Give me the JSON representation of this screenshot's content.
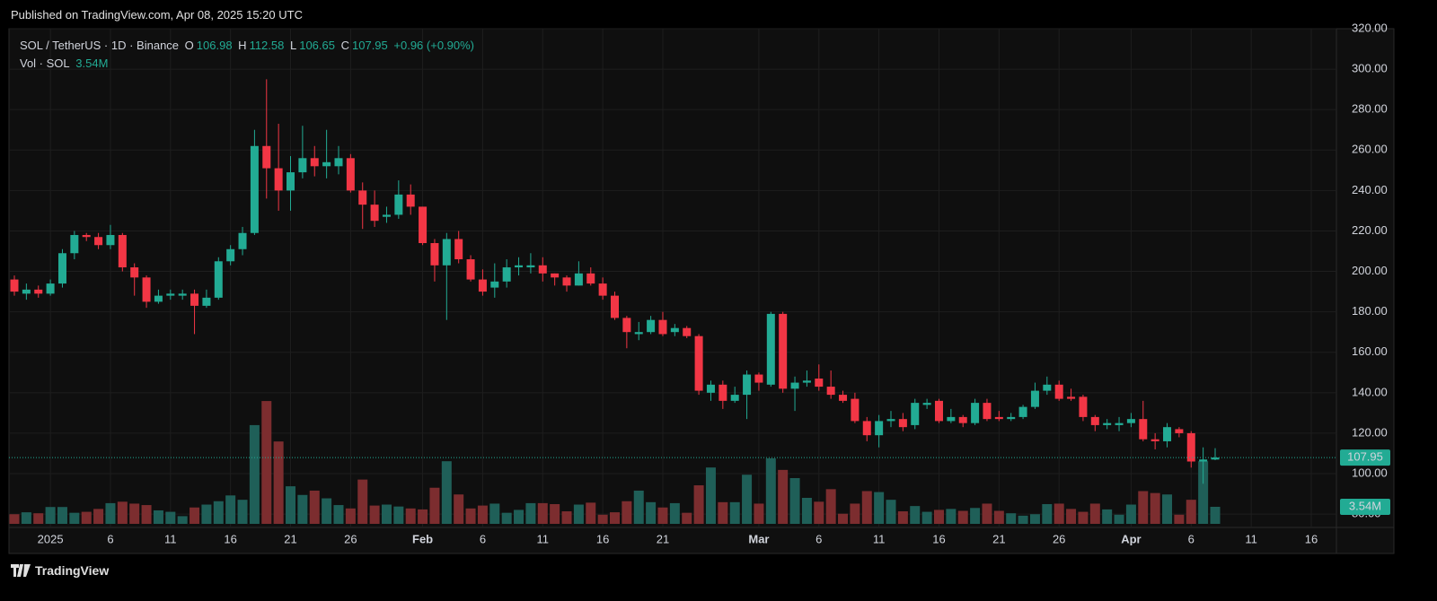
{
  "header": "Published on TradingView.com, Apr 08, 2025 15:20 UTC",
  "footer": "TradingView",
  "chart_data": {
    "type": "candlestick",
    "title": "SOL / TetherUS · 1D · Binance",
    "ohlc_keys": [
      "O",
      "H",
      "L",
      "C"
    ],
    "change": "+0.96 (+0.90%)",
    "volume_title": "Vol · SOL",
    "volume_last_label": "3.54M",
    "up_color": "#22ab94",
    "down_color": "#f23645",
    "volume_up_color": "#1f5f58",
    "volume_down_color": "#7c2d2f",
    "grid": true,
    "open": [
      196,
      189,
      191,
      189,
      194,
      209,
      218,
      217,
      213,
      218,
      202,
      197,
      185,
      188,
      188,
      189,
      183,
      187,
      205,
      211,
      219,
      262,
      251,
      240,
      249,
      256,
      252,
      252,
      256,
      240,
      233,
      227,
      228,
      238,
      232,
      214,
      203,
      216,
      206,
      196,
      192,
      195,
      202,
      202,
      203,
      199,
      197,
      193,
      199,
      194,
      188,
      177,
      169,
      170,
      176,
      170,
      172,
      168,
      140,
      144,
      136,
      139,
      149,
      144,
      179,
      142,
      145,
      147,
      143,
      139,
      137,
      126,
      119,
      126,
      127,
      124,
      134,
      136,
      126,
      128,
      125,
      135,
      128,
      127,
      128,
      133,
      141,
      144,
      138,
      138,
      128,
      124,
      124,
      125,
      127,
      117,
      116,
      122,
      120,
      106,
      106.98
    ],
    "high": [
      198,
      194,
      193,
      196,
      211,
      220,
      219,
      219,
      223,
      219,
      204,
      198,
      191,
      191,
      191,
      191,
      191,
      207,
      213,
      222,
      270,
      295,
      273,
      257,
      272,
      262,
      270,
      262,
      258,
      244,
      240,
      232,
      245,
      243,
      232,
      216,
      219,
      220,
      208,
      201,
      204,
      206,
      207,
      209,
      207,
      199,
      198,
      205,
      202,
      197,
      190,
      178,
      175,
      178,
      180,
      174,
      173,
      169,
      146,
      146,
      143,
      151,
      150,
      180,
      180,
      148,
      151,
      154,
      151,
      141,
      140,
      128,
      129,
      131,
      130,
      137,
      137,
      137,
      132,
      129,
      137,
      137,
      131,
      130,
      134,
      145,
      148,
      146,
      142,
      139,
      129,
      127,
      128,
      130,
      136,
      120,
      125,
      123,
      121,
      113,
      112.58
    ],
    "low": [
      188,
      186,
      187,
      188,
      192,
      206,
      215,
      211,
      211,
      200,
      188,
      182,
      184,
      186,
      186,
      169,
      182,
      186,
      203,
      208,
      218,
      236,
      230,
      230,
      246,
      247,
      246,
      248,
      239,
      221,
      222,
      224,
      226,
      228,
      213,
      195,
      176,
      204,
      195,
      188,
      187,
      192,
      198,
      199,
      195,
      193,
      190,
      193,
      193,
      186,
      176,
      162,
      166,
      169,
      168,
      168,
      167,
      139,
      136,
      132,
      135,
      127,
      141,
      143,
      140,
      131,
      143,
      141,
      137,
      135,
      125,
      116,
      113,
      123,
      121,
      122,
      132,
      125,
      125,
      123,
      124,
      126,
      126,
      126,
      127,
      132,
      139,
      136,
      136,
      126,
      121,
      122,
      121,
      123,
      116,
      112,
      113,
      118,
      103,
      95,
      106.65
    ],
    "close": [
      190,
      191,
      189,
      194,
      209,
      218,
      217,
      213,
      218,
      202,
      197,
      185,
      188,
      189,
      189,
      183,
      187,
      205,
      211,
      219,
      262,
      251,
      240,
      249,
      256,
      252,
      254,
      256,
      240,
      233,
      225,
      228,
      238,
      232,
      214,
      203,
      216,
      206,
      196,
      190,
      195,
      202,
      203,
      203,
      199,
      197,
      193,
      199,
      194,
      188,
      177,
      170,
      170,
      176,
      169,
      172,
      168,
      141,
      144,
      136,
      139,
      149,
      145,
      179,
      142,
      145,
      146,
      143,
      139,
      136,
      126,
      119,
      126,
      127,
      123,
      135,
      135,
      126,
      128,
      125,
      135,
      127,
      127,
      128,
      133,
      141,
      144,
      137,
      137,
      128,
      124,
      125,
      125,
      127,
      117,
      116,
      123,
      120,
      106,
      107,
      107.95
    ],
    "volume": [
      2.0,
      2.4,
      2.2,
      3.5,
      3.5,
      2.3,
      2.5,
      3.1,
      4.3,
      4.6,
      4.2,
      3.9,
      2.8,
      2.5,
      1.6,
      3.4,
      4.0,
      4.7,
      5.9,
      5.0,
      20.5,
      25.5,
      17.1,
      7.8,
      6.0,
      6.9,
      5.3,
      3.9,
      3.2,
      9.2,
      3.8,
      4.0,
      3.6,
      3.2,
      3.0,
      7.5,
      13.0,
      6.1,
      3.2,
      3.8,
      4.2,
      2.3,
      2.9,
      4.3,
      4.3,
      4.1,
      2.6,
      4.0,
      4.4,
      1.9,
      2.4,
      4.7,
      6.9,
      4.5,
      3.4,
      4.3,
      2.3,
      8.0,
      11.7,
      4.5,
      4.5,
      10.2,
      4.2,
      13.6,
      11.2,
      9.5,
      5.4,
      4.6,
      7.2,
      2.1,
      4.2,
      6.8,
      6.6,
      5.0,
      2.6,
      3.7,
      2.5,
      2.9,
      3.1,
      2.7,
      3.3,
      4.2,
      2.7,
      2.2,
      1.7,
      2.0,
      4.1,
      4.2,
      3.1,
      2.5,
      4.2,
      3.0,
      1.9,
      4.0,
      6.8,
      6.4,
      6.1,
      1.9,
      5.0,
      13.0,
      3.54
    ],
    "ylim": [
      73.4,
      320
    ],
    "yticks": [
      {
        "value": 80,
        "label": "80.00"
      },
      {
        "value": 100,
        "label": "100.00"
      },
      {
        "value": 120,
        "label": "120.00"
      },
      {
        "value": 140,
        "label": "140.00"
      },
      {
        "value": 160,
        "label": "160.00"
      },
      {
        "value": 180,
        "label": "180.00"
      },
      {
        "value": 200,
        "label": "200.00"
      },
      {
        "value": 220,
        "label": "220.00"
      },
      {
        "value": 240,
        "label": "240.00"
      },
      {
        "value": 260,
        "label": "260.00"
      },
      {
        "value": 280,
        "label": "280.00"
      },
      {
        "value": 300,
        "label": "300.00"
      },
      {
        "value": 320,
        "label": "320.00"
      }
    ],
    "xticks": [
      {
        "value": 3,
        "label": "2025"
      },
      {
        "value": 8,
        "label": "6"
      },
      {
        "value": 13,
        "label": "11"
      },
      {
        "value": 18,
        "label": "16"
      },
      {
        "value": 23,
        "label": "21"
      },
      {
        "value": 28,
        "label": "26"
      },
      {
        "value": 34,
        "label": "Feb"
      },
      {
        "value": 39,
        "label": "6"
      },
      {
        "value": 44,
        "label": "11"
      },
      {
        "value": 49,
        "label": "16"
      },
      {
        "value": 54,
        "label": "21"
      },
      {
        "value": 62,
        "label": "Mar"
      },
      {
        "value": 67,
        "label": "6"
      },
      {
        "value": 72,
        "label": "11"
      },
      {
        "value": 77,
        "label": "16"
      },
      {
        "value": 82,
        "label": "21"
      },
      {
        "value": 87,
        "label": "26"
      },
      {
        "value": 93,
        "label": "Apr"
      },
      {
        "value": 98,
        "label": "6"
      },
      {
        "value": 103,
        "label": "11"
      },
      {
        "value": 108,
        "label": "16"
      }
    ]
  }
}
